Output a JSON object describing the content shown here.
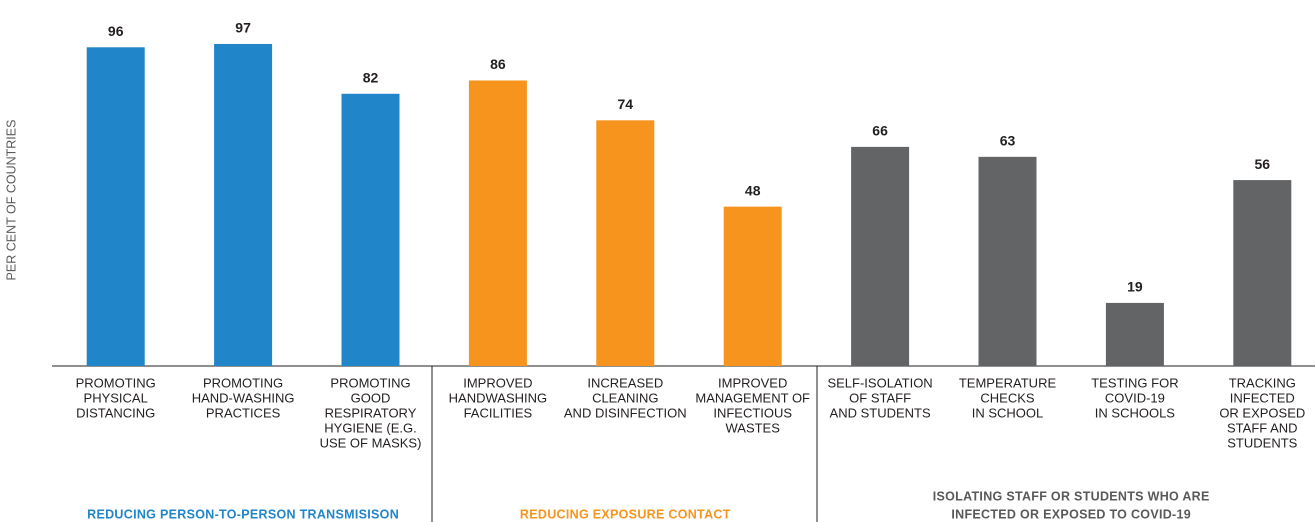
{
  "chart_data": {
    "type": "bar",
    "y_axis_label": "PER CENT OF COUNTRIES",
    "ylim": [
      0,
      100
    ],
    "groups": [
      {
        "name": [
          "REDUCING PERSON-TO-PERSON TRANSMISISON"
        ],
        "color": "#2185c9",
        "categories": [
          [
            "PROMOTING",
            "PHYSICAL",
            "DISTANCING"
          ],
          [
            "PROMOTING",
            "HAND-WASHING",
            "PRACTICES"
          ],
          [
            "PROMOTING",
            "GOOD",
            "RESPIRATORY",
            "HYGIENE (E.G.",
            "USE OF MASKS)"
          ]
        ],
        "values": [
          96,
          97,
          82
        ]
      },
      {
        "name": [
          "REDUCING EXPOSURE CONTACT"
        ],
        "color": "#f7941d",
        "categories": [
          [
            "IMPROVED",
            "HANDWASHING",
            "FACILITIES"
          ],
          [
            "INCREASED",
            "CLEANING",
            "AND DISINFECTION"
          ],
          [
            "IMPROVED",
            "MANAGEMENT OF",
            "INFECTIOUS",
            "WASTES"
          ]
        ],
        "values": [
          86,
          74,
          48
        ]
      },
      {
        "name": [
          "ISOLATING STAFF OR STUDENTS WHO ARE",
          "INFECTED OR EXPOSED TO COVID-19"
        ],
        "color": "#636466",
        "label_color": "#58595b",
        "categories": [
          [
            "SELF-ISOLATION",
            "OF STAFF",
            "AND STUDENTS"
          ],
          [
            "TEMPERATURE",
            "CHECKS",
            "IN SCHOOL"
          ],
          [
            "TESTING FOR",
            "COVID-19",
            "IN SCHOOLS"
          ],
          [
            "TRACKING",
            "INFECTED",
            "OR EXPOSED",
            "STAFF AND",
            "STUDENTS"
          ]
        ],
        "values": [
          66,
          63,
          19,
          56
        ]
      }
    ]
  }
}
